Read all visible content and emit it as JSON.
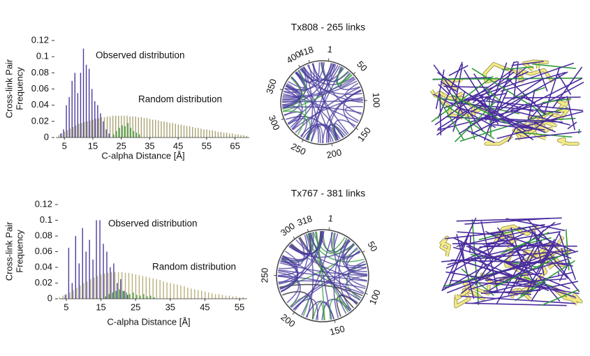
{
  "chart_data": [
    {
      "type": "bar",
      "ylabel": [
        "Cross-link Pair",
        "Frequency"
      ],
      "xlabel": "C-alpha Distance [Å]",
      "xlim": [
        2,
        70
      ],
      "xticks": [
        5,
        15,
        25,
        35,
        45,
        55,
        65
      ],
      "ylim": [
        0,
        0.12
      ],
      "yticks": [
        0,
        0.02,
        0.04,
        0.06,
        0.08,
        0.1,
        0.12
      ],
      "x": [
        3,
        4,
        5,
        6,
        7,
        8,
        9,
        10,
        11,
        12,
        13,
        14,
        15,
        16,
        17,
        18,
        19,
        20,
        21,
        22,
        23,
        24,
        25,
        26,
        27,
        28,
        29,
        30,
        31,
        32,
        33,
        34,
        35,
        36,
        37,
        38,
        39,
        40,
        41,
        42,
        43,
        44,
        45,
        46,
        47,
        48,
        49,
        50,
        51,
        52,
        53,
        54,
        55,
        56,
        57,
        58,
        59,
        60,
        61,
        62,
        63,
        64,
        65,
        66,
        67,
        68,
        69
      ],
      "series": [
        {
          "name": "Observed distribution",
          "color": "#4a3c9e",
          "values": [
            0,
            0.005,
            0.01,
            0.04,
            0.05,
            0.07,
            0.08,
            0.055,
            0.08,
            0.11,
            0.09,
            0.085,
            0.06,
            0.045,
            0.04,
            0.03,
            0.02,
            0.01,
            0.005,
            0,
            0,
            0,
            0,
            0,
            0,
            0,
            0,
            0,
            0,
            0,
            0,
            0,
            0,
            0,
            0,
            0,
            0,
            0,
            0,
            0,
            0,
            0,
            0,
            0,
            0,
            0,
            0,
            0,
            0,
            0,
            0,
            0,
            0,
            0,
            0,
            0,
            0,
            0,
            0,
            0,
            0,
            0,
            0,
            0,
            0,
            0,
            0
          ]
        },
        {
          "name": "Random distribution",
          "color": "#a9a272",
          "values": [
            0.003,
            0.005,
            0.007,
            0.009,
            0.011,
            0.013,
            0.015,
            0.017,
            0.018,
            0.019,
            0.02,
            0.021,
            0.022,
            0.023,
            0.024,
            0.025,
            0.025,
            0.026,
            0.026,
            0.027,
            0.027,
            0.027,
            0.027,
            0.027,
            0.027,
            0.026,
            0.026,
            0.026,
            0.025,
            0.025,
            0.024,
            0.024,
            0.023,
            0.022,
            0.022,
            0.021,
            0.02,
            0.02,
            0.019,
            0.018,
            0.018,
            0.017,
            0.016,
            0.016,
            0.015,
            0.014,
            0.014,
            0.013,
            0.012,
            0.012,
            0.011,
            0.01,
            0.01,
            0.009,
            0.009,
            0.008,
            0.007,
            0.007,
            0.006,
            0.006,
            0.005,
            0.005,
            0.004,
            0.004,
            0.003,
            0.003,
            0.002
          ]
        },
        {
          "color": "#3aa03c",
          "values": [
            0,
            0,
            0,
            0,
            0,
            0,
            0,
            0,
            0,
            0,
            0,
            0,
            0,
            0,
            0,
            0,
            0,
            0,
            0,
            0.004,
            0.008,
            0.012,
            0.015,
            0.014,
            0.018,
            0.012,
            0.008,
            0.006,
            0.004,
            0,
            0,
            0,
            0,
            0,
            0,
            0,
            0,
            0,
            0,
            0,
            0,
            0,
            0,
            0,
            0,
            0,
            0,
            0,
            0,
            0,
            0,
            0,
            0,
            0,
            0,
            0,
            0,
            0,
            0,
            0,
            0,
            0,
            0,
            0,
            0,
            0,
            0
          ]
        }
      ]
    },
    {
      "type": "chord",
      "title": "Tx808 - 265 links",
      "ticks": [
        1,
        50,
        100,
        150,
        200,
        250,
        300,
        350,
        400,
        418
      ]
    },
    {
      "type": "bar",
      "ylabel": [
        "Cross-link Pair",
        "Frequency"
      ],
      "xlabel": "C-alpha Distance [Å]",
      "xlim": [
        3,
        57
      ],
      "xticks": [
        5,
        15,
        25,
        35,
        45,
        55
      ],
      "ylim": [
        0,
        0.12
      ],
      "yticks": [
        0,
        0.02,
        0.04,
        0.06,
        0.08,
        0.1,
        0.12
      ],
      "x": [
        3,
        4,
        5,
        6,
        7,
        8,
        9,
        10,
        11,
        12,
        13,
        14,
        15,
        16,
        17,
        18,
        19,
        20,
        21,
        22,
        23,
        24,
        25,
        26,
        27,
        28,
        29,
        30,
        31,
        32,
        33,
        34,
        35,
        36,
        37,
        38,
        39,
        40,
        41,
        42,
        43,
        44,
        45,
        46,
        47,
        48,
        49,
        50,
        51,
        52,
        53,
        54,
        55,
        56,
        57
      ],
      "series": [
        {
          "name": "Observed distribution",
          "color": "#4a3c9e",
          "values": [
            0,
            0,
            0.005,
            0.065,
            0.02,
            0.08,
            0.045,
            0.09,
            0.06,
            0.075,
            0.05,
            0.1,
            0.1,
            0.07,
            0.06,
            0.04,
            0.045,
            0.02,
            0.025,
            0.01,
            0.005,
            0,
            0,
            0,
            0,
            0,
            0,
            0,
            0,
            0,
            0,
            0,
            0,
            0,
            0,
            0,
            0,
            0,
            0,
            0,
            0,
            0,
            0,
            0,
            0,
            0,
            0,
            0,
            0,
            0,
            0,
            0,
            0,
            0,
            0
          ]
        },
        {
          "name": "Random distribution",
          "color": "#b8b07a",
          "values": [
            0.002,
            0.004,
            0.006,
            0.008,
            0.011,
            0.014,
            0.017,
            0.02,
            0.022,
            0.025,
            0.027,
            0.029,
            0.031,
            0.032,
            0.033,
            0.034,
            0.034,
            0.034,
            0.034,
            0.033,
            0.033,
            0.032,
            0.031,
            0.03,
            0.029,
            0.028,
            0.027,
            0.026,
            0.025,
            0.024,
            0.022,
            0.021,
            0.02,
            0.019,
            0.018,
            0.017,
            0.016,
            0.014,
            0.013,
            0.012,
            0.011,
            0.01,
            0.009,
            0.008,
            0.007,
            0.006,
            0.006,
            0.005,
            0.004,
            0.004,
            0.003,
            0.003,
            0.002,
            0.002,
            0.001
          ]
        },
        {
          "color": "#3aa03c",
          "values": [
            0,
            0,
            0,
            0,
            0,
            0,
            0,
            0,
            0,
            0,
            0,
            0,
            0,
            0.003,
            0.006,
            0.008,
            0.01,
            0.012,
            0.01,
            0.008,
            0.006,
            0.008,
            0.005,
            0.004,
            0.006,
            0.003,
            0.004,
            0.002,
            0,
            0,
            0,
            0,
            0,
            0,
            0,
            0,
            0,
            0,
            0,
            0,
            0,
            0,
            0,
            0,
            0,
            0,
            0,
            0,
            0,
            0,
            0,
            0,
            0,
            0,
            0
          ]
        }
      ]
    },
    {
      "type": "chord",
      "title": "Tx767 - 381 links",
      "ticks": [
        1,
        50,
        100,
        150,
        200,
        250,
        300,
        318
      ]
    }
  ]
}
